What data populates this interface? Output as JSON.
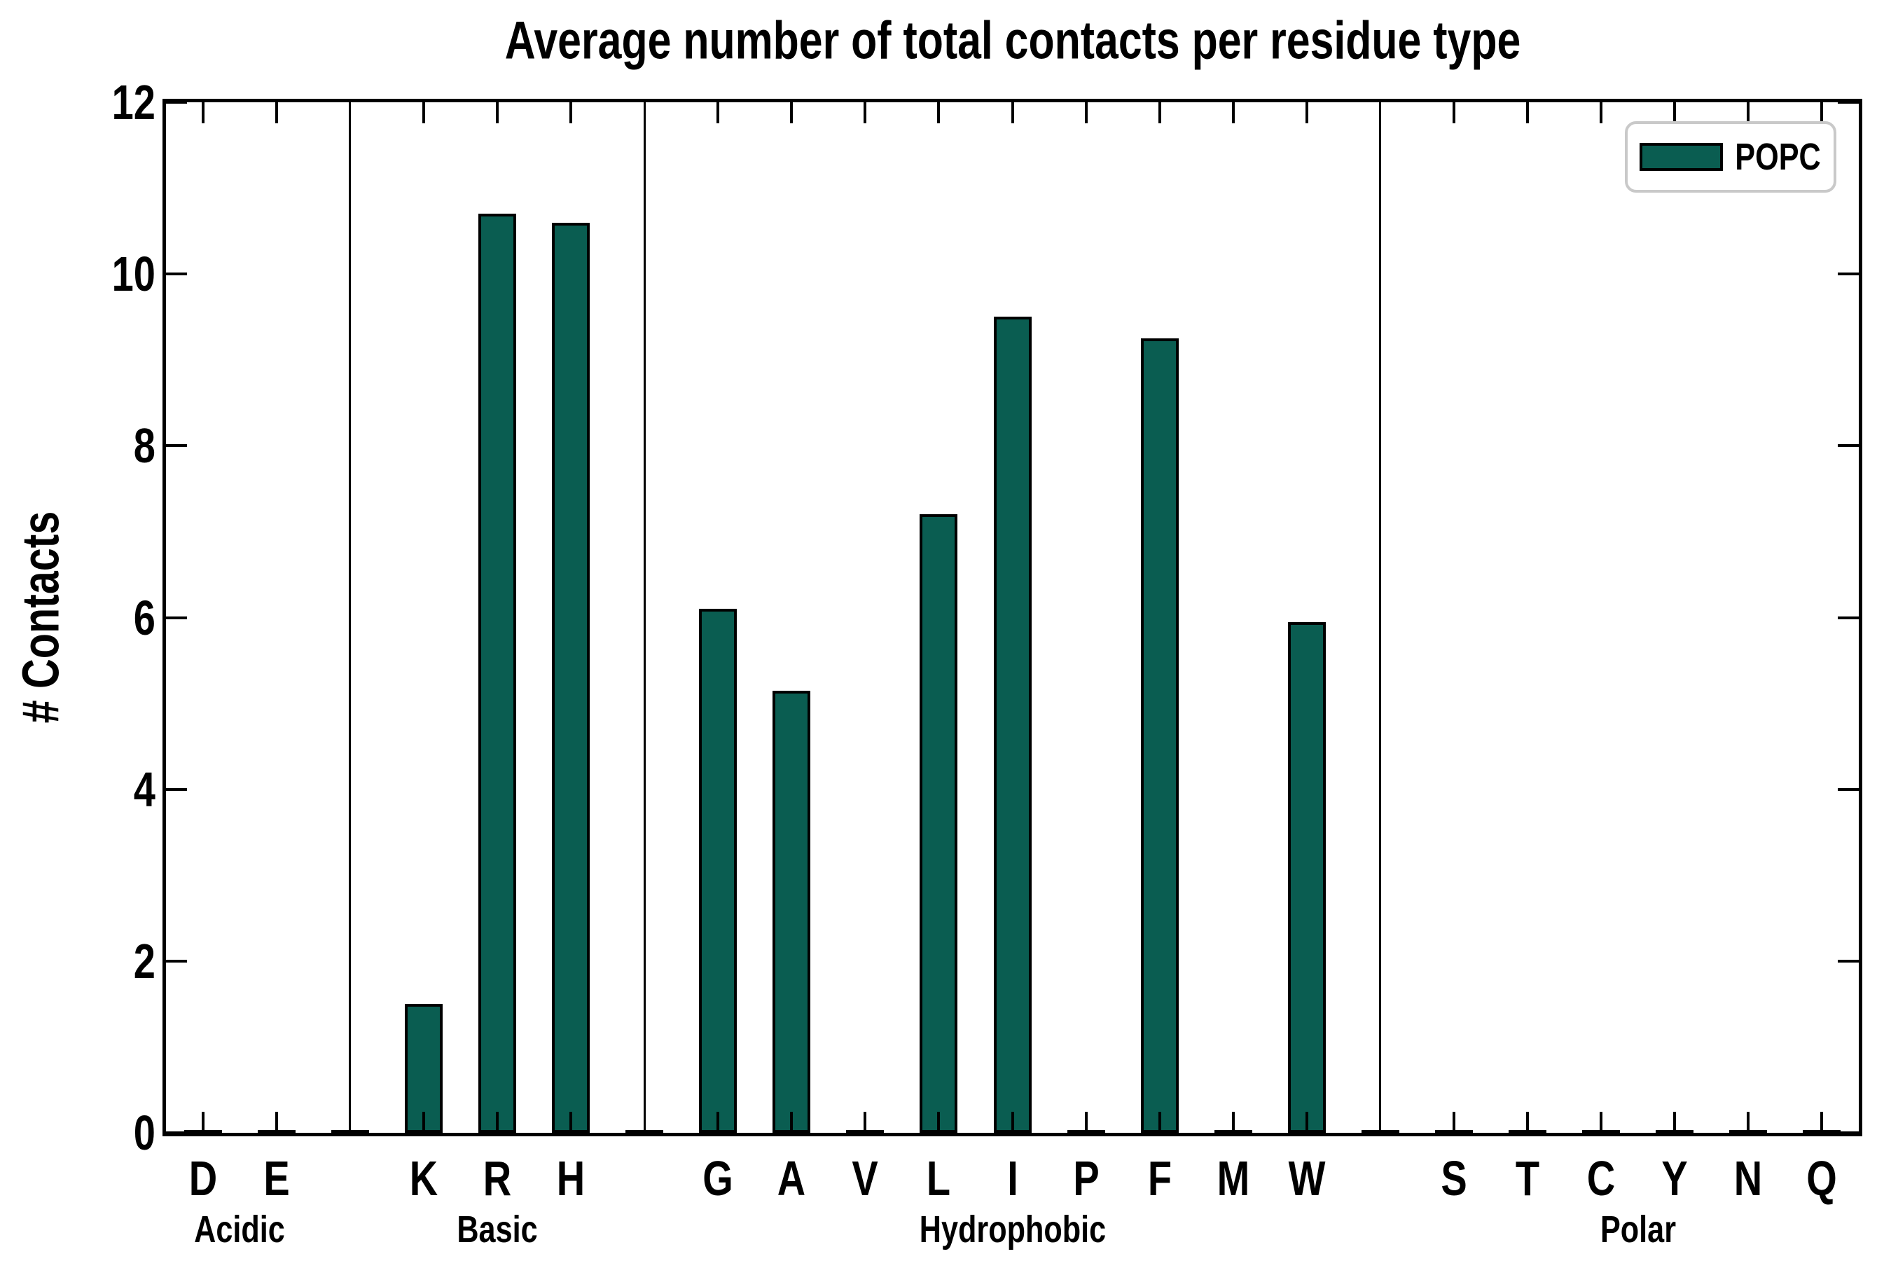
{
  "title": "Average number of total contacts per residue type",
  "ylabel": "# Contacts",
  "legend": {
    "label": "POPC"
  },
  "colors": {
    "bar_fill": "#0a5d51",
    "bar_edge": "#000000",
    "axis": "#000000",
    "legend_border": "#c9c9c9",
    "background": "#ffffff"
  },
  "chart_data": {
    "type": "bar",
    "title": "Average number of total contacts per residue type",
    "xlabel": "",
    "ylabel": "# Contacts",
    "ylim": [
      0,
      12
    ],
    "yticks": [
      0,
      2,
      4,
      6,
      8,
      10,
      12
    ],
    "grid": false,
    "legend_entries": [
      "POPC"
    ],
    "legend_position": "upper right",
    "group_dividers": true,
    "groups": [
      {
        "label": "Acidic",
        "categories": [
          "D",
          "E"
        ],
        "values": [
          0,
          0
        ]
      },
      {
        "label": "Basic",
        "categories": [
          "K",
          "R",
          "H"
        ],
        "values": [
          1.5,
          10.7,
          10.6
        ]
      },
      {
        "label": "Hydrophobic",
        "categories": [
          "G",
          "A",
          "V",
          "L",
          "I",
          "P",
          "F",
          "M",
          "W"
        ],
        "values": [
          6.1,
          5.15,
          0,
          7.2,
          9.5,
          0,
          9.25,
          0,
          5.95
        ]
      },
      {
        "label": "Polar",
        "categories": [
          "S",
          "T",
          "C",
          "Y",
          "N",
          "Q"
        ],
        "values": [
          0,
          0,
          0,
          0,
          0,
          0
        ]
      }
    ]
  }
}
